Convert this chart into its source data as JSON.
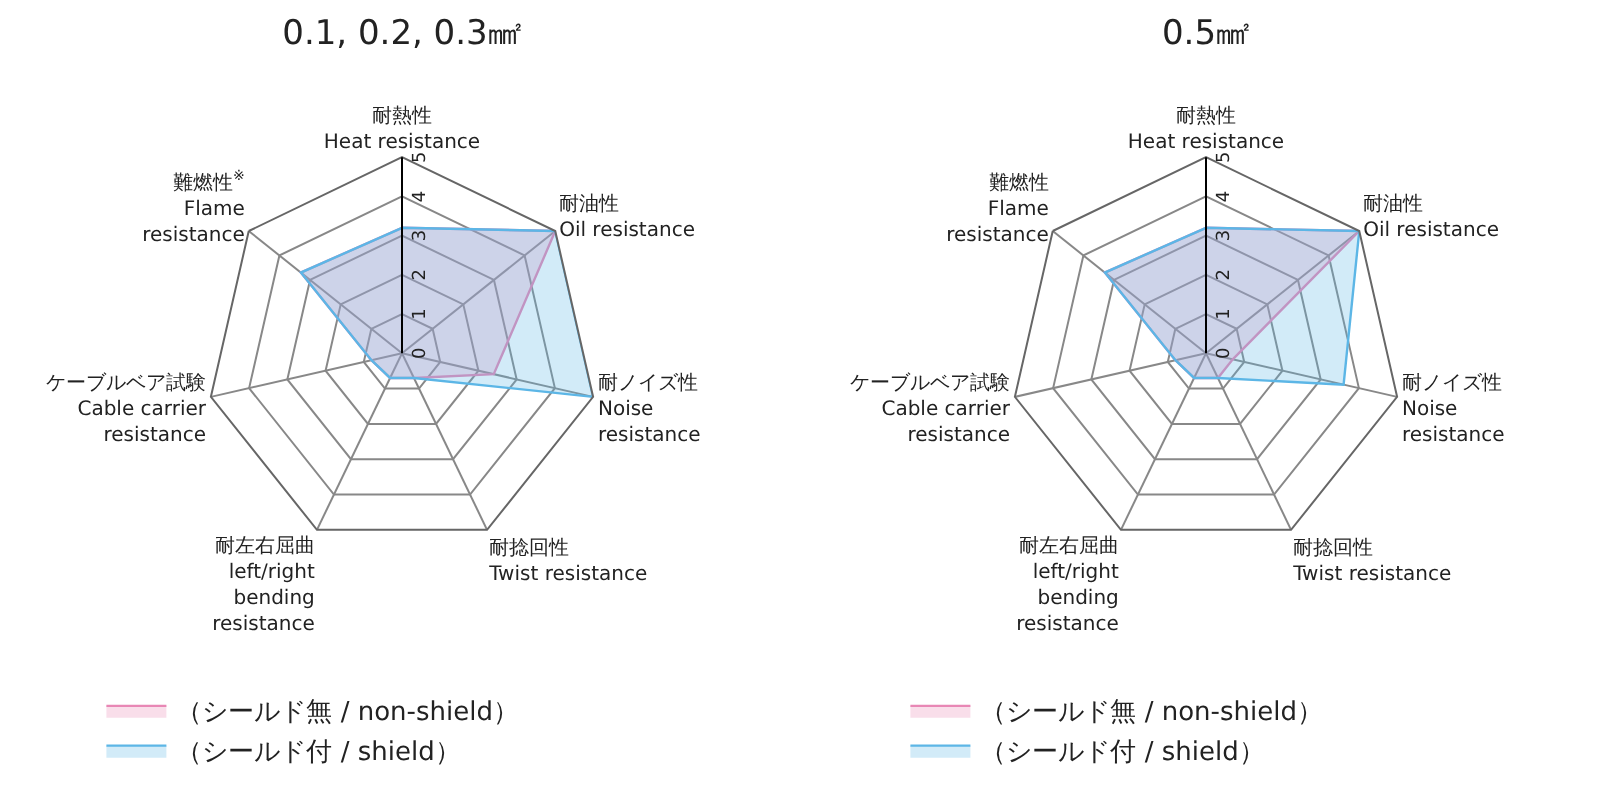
{
  "chart_data": [
    {
      "type": "radar",
      "title": "0.1, 0.2, 0.3㎟",
      "categories": [
        "耐熱性\nHeat resistance",
        "耐油性\nOil resistance",
        "耐ノイズ性\nNoise\nresistance",
        "耐捻回性\nTwist resistance",
        "耐左右屈曲\nleft/right\nbending\nresistance",
        "ケーブルベア試験\nCable carrier\nresistance",
        "難燃性$^{※}$\nFlame\nresistance"
      ],
      "series": [
        {
          "name": "（シールド無 / non-shield）",
          "color": "#e887b5",
          "values": [
            3.2,
            5,
            2.4,
            0.7,
            0.7,
            0.8,
            3.3
          ]
        },
        {
          "name": "（シールド付 / shield）",
          "color": "#5cb6e6",
          "values": [
            3.2,
            5,
            5,
            0.7,
            0.7,
            0.8,
            3.3
          ]
        }
      ],
      "ylim": [
        0,
        5
      ],
      "yticks": [
        0,
        1,
        2,
        3,
        4,
        5
      ],
      "grid": true,
      "legend": "bottom left"
    },
    {
      "type": "radar",
      "title": "0.5㎟",
      "categories": [
        "耐熱性\nHeat resistance",
        "耐油性\nOil resistance",
        "耐ノイズ性\nNoise\nresistance",
        "耐捻回性\nTwist resistance",
        "耐左右屈曲\nleft/right\nbending\nresistance",
        "ケーブルベア試験\nCable carrier\nresistance",
        "難燃性\nFlame\nresistance"
      ],
      "series": [
        {
          "name": "（シールド無 / non-shield）",
          "color": "#e887b5",
          "values": [
            3.2,
            5,
            0.7,
            0.7,
            0.7,
            0.8,
            3.3
          ]
        },
        {
          "name": "（シールド付 / shield）",
          "color": "#5cb6e6",
          "values": [
            3.2,
            5,
            3.6,
            0.7,
            0.7,
            0.8,
            3.3
          ]
        }
      ],
      "ylim": [
        0,
        5
      ],
      "yticks": [
        0,
        1,
        2,
        3,
        4,
        5
      ],
      "grid": true,
      "legend": "bottom left"
    }
  ]
}
